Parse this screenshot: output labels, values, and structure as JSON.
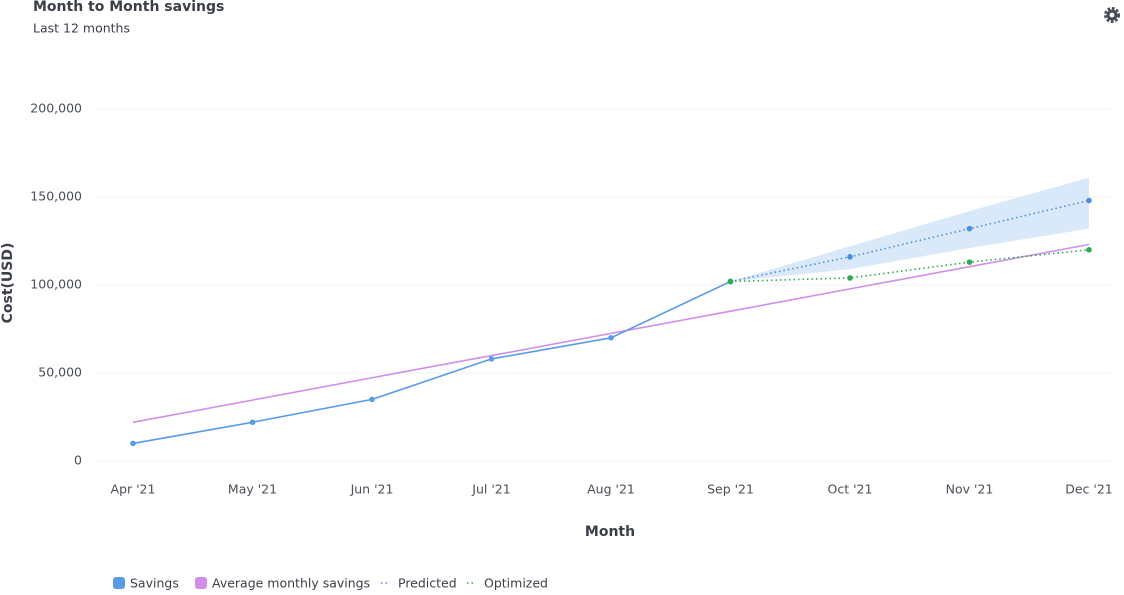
{
  "chart_data": {
    "type": "line",
    "title": "Month to Month savings",
    "subtitle": "Last 12 months",
    "x_label": "Month",
    "y_label": "Cost(USD)",
    "categories": [
      "Apr '21",
      "May '21",
      "Jun '21",
      "Jul '21",
      "Aug '21",
      "Sep '21",
      "Oct '21",
      "Nov '21",
      "Dec '21"
    ],
    "series": [
      {
        "name": "Savings",
        "color": "#5b9be6",
        "style": "solid",
        "markers": true,
        "values": [
          10000,
          22000,
          35000,
          58000,
          70000,
          102000,
          null,
          null,
          null
        ]
      },
      {
        "name": "Average monthly savings",
        "color": "#d08ee8",
        "style": "solid",
        "markers": false,
        "values": [
          22000,
          34600,
          47300,
          59900,
          72500,
          85100,
          97800,
          110400,
          123000
        ]
      },
      {
        "name": "Predicted",
        "color": "#4a90d9",
        "style": "dotted",
        "markers": true,
        "values": [
          null,
          null,
          null,
          null,
          null,
          102000,
          116000,
          132000,
          148000
        ]
      },
      {
        "name": "Optimized",
        "color": "#2eaa4f",
        "style": "dotted",
        "markers": true,
        "values": [
          null,
          null,
          null,
          null,
          null,
          102000,
          104000,
          113000,
          120000
        ]
      }
    ],
    "band": {
      "color": "#cfe3f8",
      "lower": [
        null,
        null,
        null,
        null,
        null,
        102000,
        109000,
        121000,
        132000
      ],
      "upper": [
        null,
        null,
        null,
        null,
        null,
        102000,
        122000,
        142000,
        161000
      ]
    },
    "ylim": [
      0,
      200000
    ],
    "yticks": [
      0,
      {
        "value": 50000,
        "label": "50,000"
      },
      {
        "value": 100000,
        "label": "100,000"
      },
      {
        "value": 150000,
        "label": "150,000"
      },
      {
        "value": 200000,
        "label": "200,000"
      }
    ],
    "grid": true
  }
}
